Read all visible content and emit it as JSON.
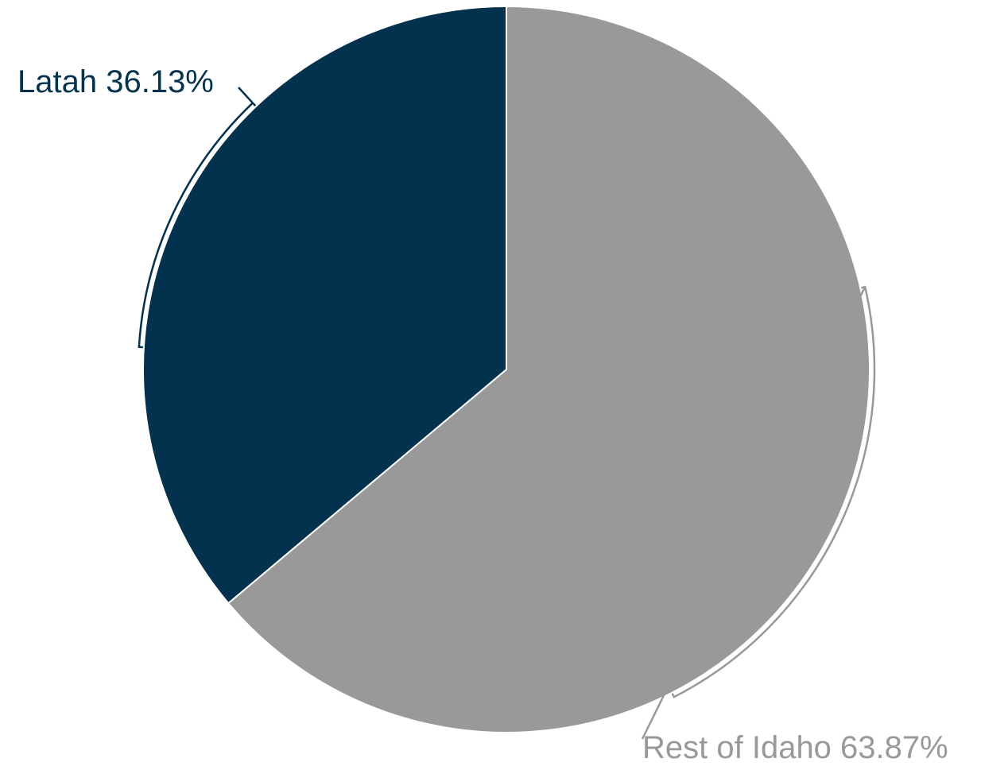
{
  "chart_data": {
    "type": "pie",
    "slices": [
      {
        "label": "Rest of Idaho",
        "value": 63.87,
        "display": "Rest of Idaho 63.87%",
        "color": "#999999"
      },
      {
        "label": "Latah",
        "value": 36.13,
        "display": "Latah 36.13%",
        "color": "#03324f"
      }
    ],
    "start_angle": "12 o'clock",
    "direction": "clockwise"
  }
}
